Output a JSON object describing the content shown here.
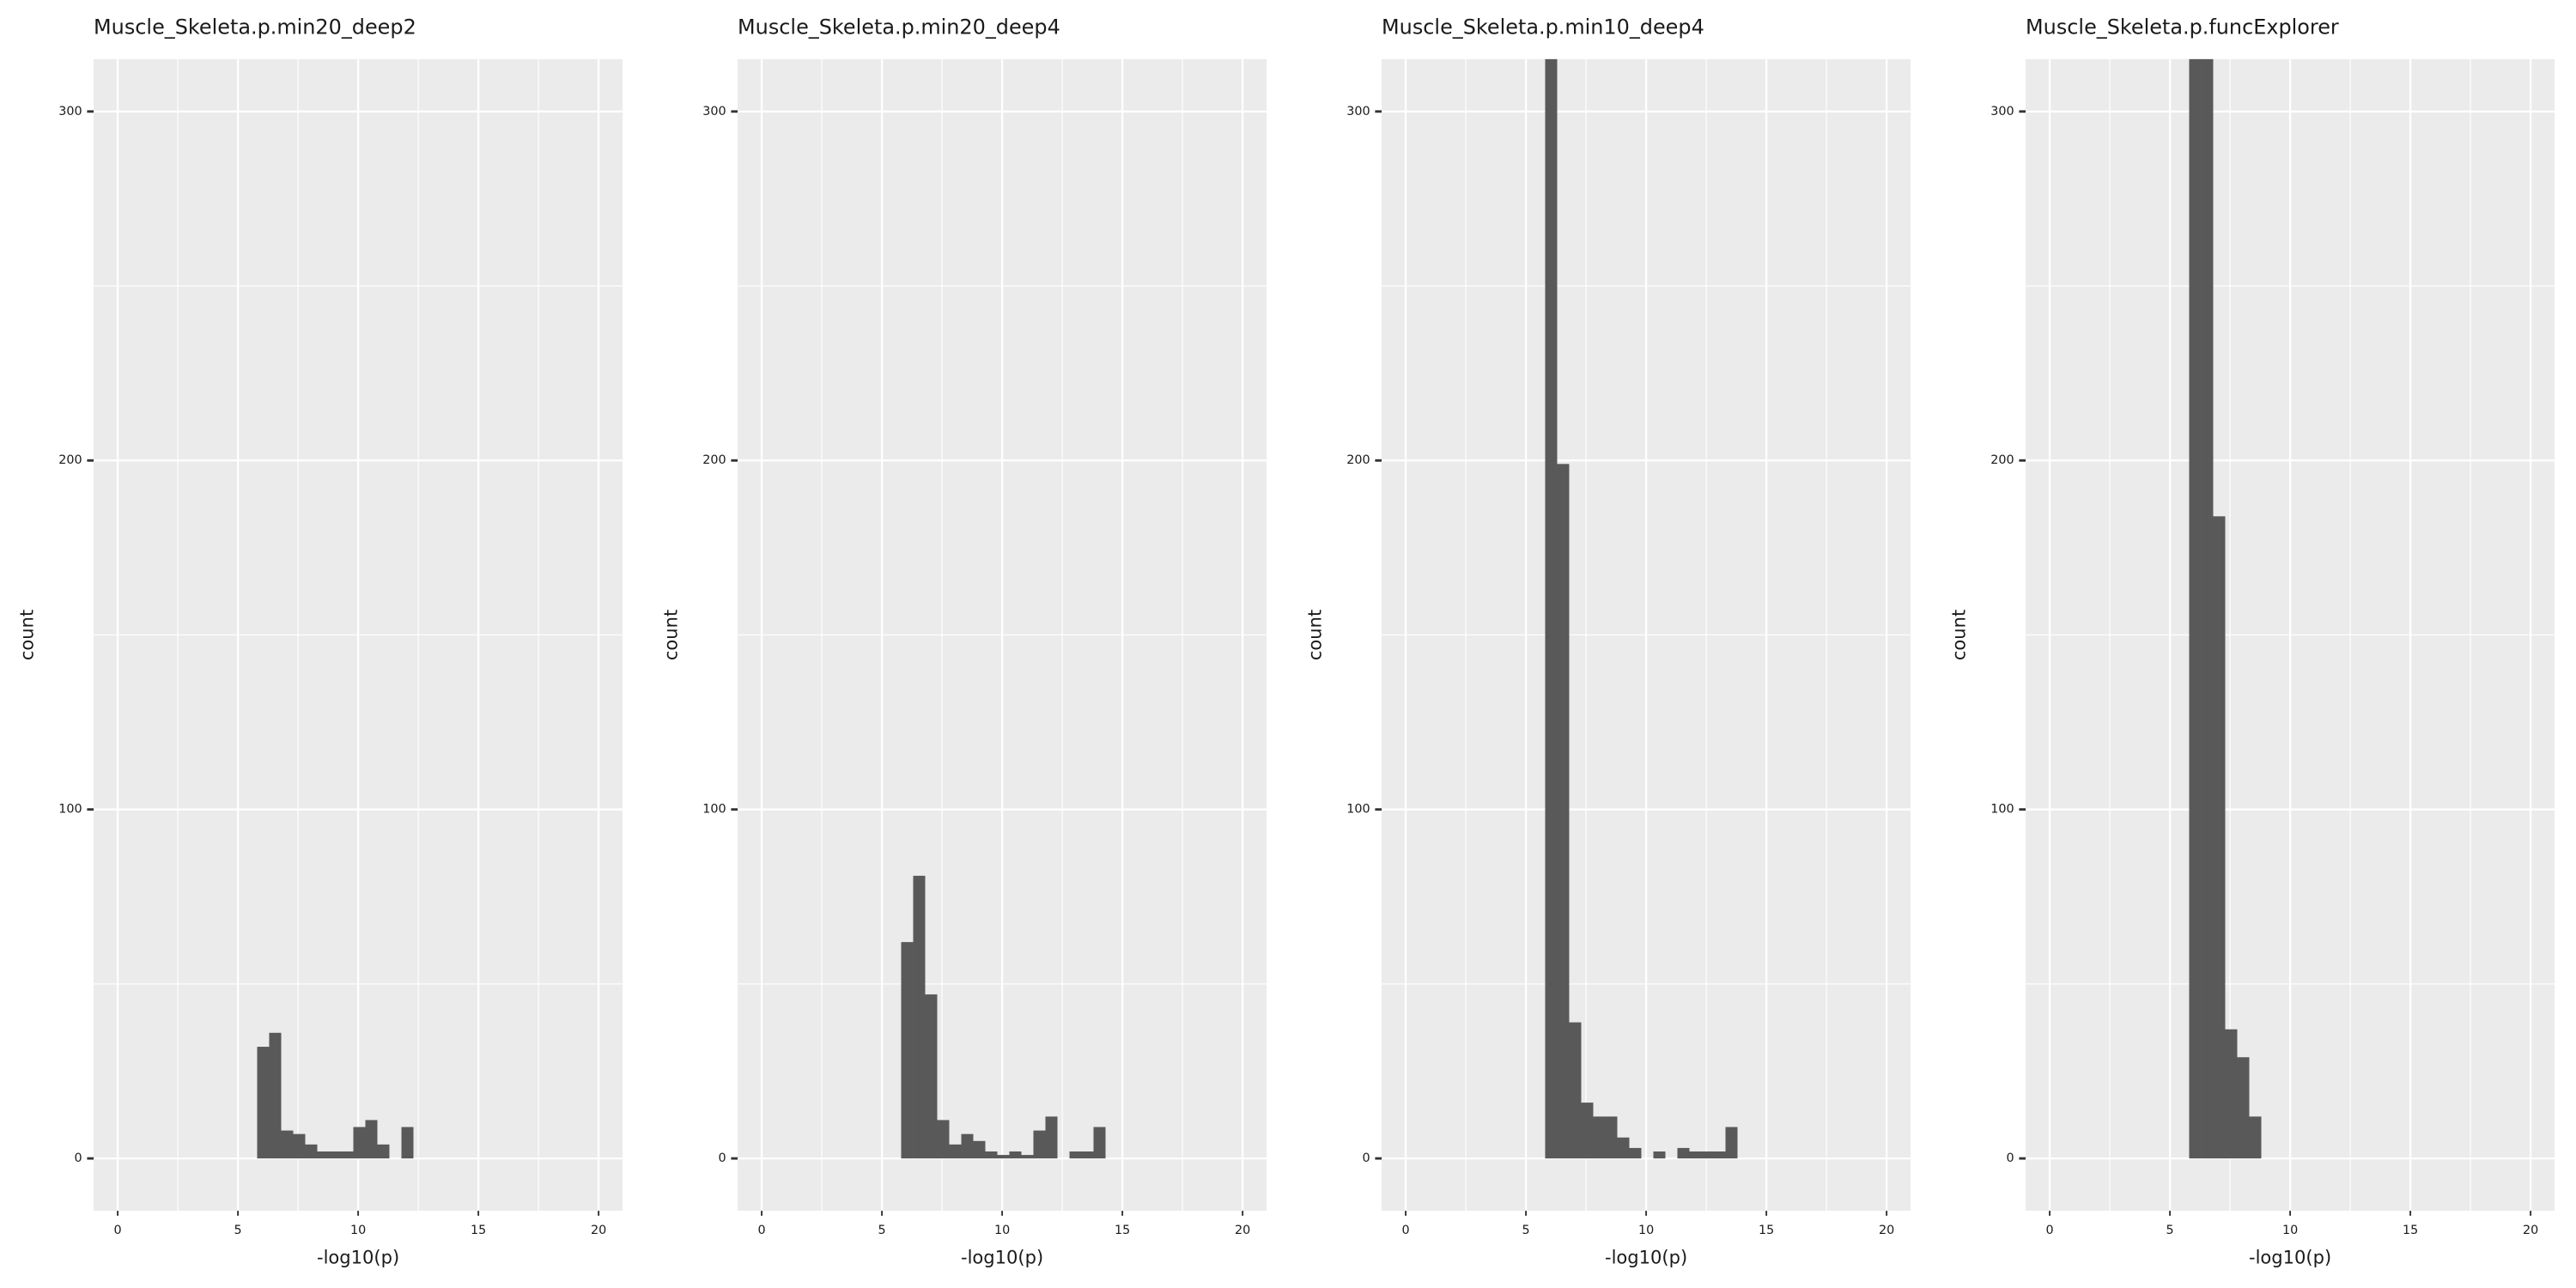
{
  "chart_data": [
    {
      "type": "histogram",
      "title": "Muscle_Skeleta.p.min20_deep2",
      "xlabel": "-log10(p)",
      "ylabel": "count",
      "color": "#595959",
      "bins": [
        5.8,
        6.3,
        6.8,
        7.3,
        7.8,
        8.3,
        8.8,
        9.3,
        9.8,
        10.3,
        10.8,
        11.3,
        11.8,
        12.3
      ],
      "values": [
        32,
        36,
        8,
        7,
        4,
        2,
        2,
        2,
        9,
        11,
        4,
        0,
        9
      ],
      "xlim": [
        -1,
        21
      ],
      "ylim": [
        -15,
        315
      ],
      "xticks": [
        0,
        5,
        10,
        15,
        20
      ],
      "yticks": [
        0,
        100,
        200,
        300
      ],
      "grid": true
    },
    {
      "type": "histogram",
      "title": "Muscle_Skeleta.p.min20_deep4",
      "xlabel": "-log10(p)",
      "ylabel": "count",
      "color": "#595959",
      "bins": [
        5.8,
        6.3,
        6.8,
        7.3,
        7.8,
        8.3,
        8.8,
        9.3,
        9.8,
        10.3,
        10.8,
        11.3,
        11.8,
        12.3,
        12.8,
        13.3,
        13.8,
        14.3
      ],
      "values": [
        62,
        81,
        47,
        11,
        4,
        7,
        5,
        2,
        1,
        2,
        1,
        8,
        12,
        0,
        2,
        2,
        9
      ],
      "xlim": [
        -1,
        21
      ],
      "ylim": [
        -15,
        315
      ],
      "xticks": [
        0,
        5,
        10,
        15,
        20
      ],
      "yticks": [
        0,
        100,
        200,
        300
      ],
      "grid": true
    },
    {
      "type": "histogram",
      "title": "Muscle_Skeleta.p.min10_deep4",
      "xlabel": "-log10(p)",
      "ylabel": "count",
      "color": "#595959",
      "bins": [
        5.8,
        6.3,
        6.8,
        7.3,
        7.8,
        8.3,
        8.8,
        9.3,
        9.8,
        10.3,
        10.8,
        11.3,
        11.8,
        12.3,
        12.8,
        13.3,
        13.8
      ],
      "values": [
        320,
        199,
        39,
        16,
        12,
        12,
        6,
        3,
        0,
        2,
        0,
        3,
        2,
        2,
        2,
        9
      ],
      "xlim": [
        -1,
        21
      ],
      "ylim": [
        -15,
        315
      ],
      "xticks": [
        0,
        5,
        10,
        15,
        20
      ],
      "yticks": [
        0,
        100,
        200,
        300
      ],
      "grid": true
    },
    {
      "type": "histogram",
      "title": "Muscle_Skeleta.p.funcExplorer",
      "xlabel": "-log10(p)",
      "ylabel": "count",
      "color": "#595959",
      "bins": [
        5.8,
        6.3,
        6.8,
        7.3,
        7.8,
        8.3,
        8.8
      ],
      "values": [
        320,
        320,
        184,
        37,
        29,
        12
      ],
      "xlim": [
        -1,
        21
      ],
      "ylim": [
        -15,
        315
      ],
      "xticks": [
        0,
        5,
        10,
        15,
        20
      ],
      "yticks": [
        0,
        100,
        200,
        300
      ],
      "grid": true
    }
  ]
}
